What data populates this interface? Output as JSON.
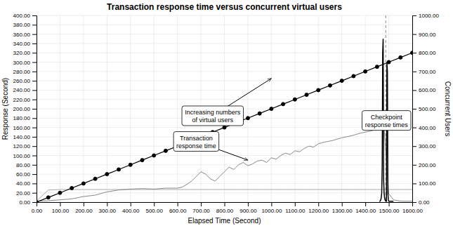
{
  "chart_data": {
    "type": "line",
    "title": "Transaction response time versus concurrent virtual users",
    "xlabel": "Elapsed Time (Second)",
    "ylabel": "Response (Second)",
    "y2label": "Concurrent Users",
    "xlim": [
      0,
      1600
    ],
    "ylim": [
      0,
      400
    ],
    "y2lim": [
      0,
      1000
    ],
    "xticks": [
      {
        "value": 0,
        "label": "0.00"
      },
      {
        "value": 100,
        "label": "100.00"
      },
      {
        "value": 200,
        "label": "200.00"
      },
      {
        "value": 300,
        "label": "300.00"
      },
      {
        "value": 400,
        "label": "400.00"
      },
      {
        "value": 500,
        "label": "500.00"
      },
      {
        "value": 600,
        "label": "600.00"
      },
      {
        "value": 700,
        "label": "700.00"
      },
      {
        "value": 800,
        "label": "800.00"
      },
      {
        "value": 900,
        "label": "900.00"
      },
      {
        "value": 1000,
        "label": "1000.00"
      },
      {
        "value": 1100,
        "label": "1100.00"
      },
      {
        "value": 1200,
        "label": "1200.00"
      },
      {
        "value": 1300,
        "label": "1300.00"
      },
      {
        "value": 1400,
        "label": "1400.00"
      },
      {
        "value": 1500,
        "label": "1500.00"
      },
      {
        "value": 1600,
        "label": "1600.00"
      }
    ],
    "yticks": [
      {
        "value": 0,
        "label": "0.00"
      },
      {
        "value": 20,
        "label": "20.00"
      },
      {
        "value": 40,
        "label": "40.00"
      },
      {
        "value": 60,
        "label": "60.00"
      },
      {
        "value": 80,
        "label": "80.00"
      },
      {
        "value": 100,
        "label": "100.00"
      },
      {
        "value": 120,
        "label": "120.00"
      },
      {
        "value": 140,
        "label": "140.00"
      },
      {
        "value": 160,
        "label": "160.00"
      },
      {
        "value": 180,
        "label": "180.00"
      },
      {
        "value": 200,
        "label": "200.00"
      },
      {
        "value": 220,
        "label": "220.00"
      },
      {
        "value": 240,
        "label": "240.00"
      },
      {
        "value": 260,
        "label": "260.00"
      },
      {
        "value": 280,
        "label": "280.00"
      },
      {
        "value": 300,
        "label": "300.00"
      },
      {
        "value": 320,
        "label": "320.00"
      },
      {
        "value": 340,
        "label": "340.00"
      },
      {
        "value": 360,
        "label": "360.00"
      },
      {
        "value": 380,
        "label": "380.00"
      },
      {
        "value": 400,
        "label": "400.00"
      }
    ],
    "y2ticks": [
      {
        "value": 0,
        "label": "0.00"
      },
      {
        "value": 100,
        "label": "100.00"
      },
      {
        "value": 200,
        "label": "200.00"
      },
      {
        "value": 300,
        "label": "300.00"
      },
      {
        "value": 400,
        "label": "400.00"
      },
      {
        "value": 500,
        "label": "500.00"
      },
      {
        "value": 600,
        "label": "600.00"
      },
      {
        "value": 700,
        "label": "700.00"
      },
      {
        "value": 800,
        "label": "800.00"
      },
      {
        "value": 900,
        "label": "900.00"
      },
      {
        "value": 1000,
        "label": "1000.00"
      }
    ],
    "grid": true,
    "series": [
      {
        "axis": "y2",
        "color": "#000000",
        "marker": "circle",
        "x": [
          0,
          50,
          100,
          150,
          200,
          250,
          300,
          350,
          400,
          450,
          500,
          550,
          600,
          650,
          700,
          750,
          800,
          850,
          900,
          950,
          1000,
          1050,
          1100,
          1150,
          1200,
          1250,
          1300,
          1350,
          1400,
          1450,
          1500,
          1550,
          1600
        ],
        "values": [
          0,
          25,
          50,
          75,
          100,
          125,
          150,
          175,
          200,
          225,
          250,
          275,
          300,
          325,
          350,
          375,
          400,
          425,
          450,
          475,
          500,
          525,
          550,
          575,
          600,
          625,
          650,
          675,
          700,
          725,
          750,
          775,
          800
        ]
      },
      {
        "color": "#888888",
        "x": [
          0,
          50,
          100,
          150,
          200,
          250,
          300,
          350,
          400,
          450,
          500,
          550,
          600,
          620,
          640,
          660,
          680,
          700,
          720,
          740,
          760,
          780,
          800,
          820,
          840,
          860,
          880,
          900,
          920,
          940,
          960,
          980,
          1000,
          1020,
          1040,
          1060,
          1080,
          1100,
          1120,
          1140,
          1160,
          1180,
          1200,
          1220,
          1240,
          1260,
          1280,
          1300,
          1320,
          1340,
          1360,
          1380,
          1400,
          1420,
          1440,
          1460,
          1480,
          1500,
          1520,
          1540,
          1560,
          1580,
          1600
        ],
        "values": [
          2,
          3,
          5,
          7,
          12,
          15,
          22,
          26,
          28,
          29,
          28,
          30,
          30,
          32,
          38,
          45,
          55,
          65,
          60,
          50,
          45,
          55,
          65,
          75,
          70,
          80,
          85,
          78,
          82,
          88,
          90,
          85,
          95,
          92,
          100,
          105,
          102,
          110,
          108,
          115,
          120,
          118,
          125,
          128,
          130,
          132,
          135,
          138,
          140,
          142,
          145,
          148,
          150,
          152,
          155,
          158,
          160,
          18,
          5,
          3,
          2,
          2,
          2
        ]
      },
      {
        "color": "#000000",
        "x": [
          1460,
          1462,
          1464,
          1466,
          1468,
          1470,
          1472,
          1474,
          1476,
          1478,
          1480,
          1482,
          1484,
          1486,
          1488,
          1490,
          1492,
          1494,
          1496,
          1498,
          1500,
          1502,
          1504,
          1506,
          1508,
          1510,
          1512,
          1514,
          1516,
          1518,
          1520
        ],
        "values": [
          2,
          2,
          3,
          5,
          10,
          20,
          80,
          320,
          350,
          50,
          20,
          10,
          5,
          3,
          2,
          2,
          300,
          280,
          20,
          5,
          2,
          2,
          2,
          2,
          2,
          2,
          2,
          2,
          2,
          2,
          2
        ]
      },
      {
        "color": "#aaaaaa",
        "x": [
          0,
          50,
          100,
          150,
          200,
          250,
          300,
          350,
          400,
          450,
          500,
          550,
          600,
          650,
          700,
          750,
          800,
          850,
          900,
          950,
          1000,
          1050,
          1100,
          1150,
          1200,
          1250,
          1300,
          1350,
          1400,
          1450,
          1500,
          1550,
          1600
        ],
        "values": [
          2,
          26,
          27,
          27,
          27,
          27,
          27,
          27,
          27,
          27,
          27,
          27,
          27,
          27,
          27,
          27,
          27,
          27,
          27,
          27,
          27,
          27,
          27,
          27,
          27,
          27,
          27,
          27,
          27,
          27,
          27,
          27,
          27
        ]
      }
    ],
    "vlines": [
      {
        "x": 1487,
        "color": "#888888",
        "line_style": "dashed"
      }
    ],
    "annotations": [
      {
        "text": "Increasing numbers\nof virtual users",
        "xy": [
          1000,
          265
        ],
        "xytext": [
          750,
          185
        ]
      },
      {
        "text": "Transaction\nresponse time",
        "xy": [
          900,
          90
        ],
        "xytext": [
          680,
          130
        ]
      },
      {
        "text": "Checkpoint\nresponse times",
        "xy": [
          1487,
          170
        ],
        "xytext": [
          1500,
          175
        ]
      }
    ]
  }
}
